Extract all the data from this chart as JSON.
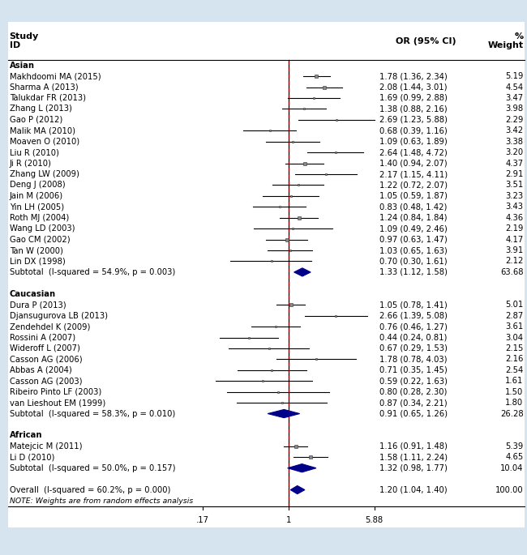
{
  "background_color": "#d6e4f0",
  "plot_bg_color": "#ffffff",
  "title_study": "Study\nID",
  "title_or": "OR (95% CI)",
  "title_weight": "%\nWeight",
  "xticks": [
    0.17,
    1.0,
    5.88
  ],
  "xticklabels": [
    ".17",
    "1",
    "5.88"
  ],
  "studies": [
    {
      "group": "Asian",
      "label": "Makhdoomi MA (2015)",
      "or": 1.78,
      "ci_low": 1.36,
      "ci_high": 2.34,
      "weight": 5.19,
      "or_text": "1.78 (1.36, 2.34)",
      "wt_text": "5.19"
    },
    {
      "group": "Asian",
      "label": "Sharma A (2013)",
      "or": 2.08,
      "ci_low": 1.44,
      "ci_high": 3.01,
      "weight": 4.54,
      "or_text": "2.08 (1.44, 3.01)",
      "wt_text": "4.54"
    },
    {
      "group": "Asian",
      "label": "Talukdar FR (2013)",
      "or": 1.69,
      "ci_low": 0.99,
      "ci_high": 2.88,
      "weight": 3.47,
      "or_text": "1.69 (0.99, 2.88)",
      "wt_text": "3.47"
    },
    {
      "group": "Asian",
      "label": "Zhang L (2013)",
      "or": 1.38,
      "ci_low": 0.88,
      "ci_high": 2.16,
      "weight": 3.98,
      "or_text": "1.38 (0.88, 2.16)",
      "wt_text": "3.98"
    },
    {
      "group": "Asian",
      "label": "Gao P (2012)",
      "or": 2.69,
      "ci_low": 1.23,
      "ci_high": 5.88,
      "weight": 2.29,
      "or_text": "2.69 (1.23, 5.88)",
      "wt_text": "2.29"
    },
    {
      "group": "Asian",
      "label": "Malik MA (2010)",
      "or": 0.68,
      "ci_low": 0.39,
      "ci_high": 1.16,
      "weight": 3.42,
      "or_text": "0.68 (0.39, 1.16)",
      "wt_text": "3.42"
    },
    {
      "group": "Asian",
      "label": "Moaven O (2010)",
      "or": 1.09,
      "ci_low": 0.63,
      "ci_high": 1.89,
      "weight": 3.38,
      "or_text": "1.09 (0.63, 1.89)",
      "wt_text": "3.38"
    },
    {
      "group": "Asian",
      "label": "Liu R (2010)",
      "or": 2.64,
      "ci_low": 1.48,
      "ci_high": 4.72,
      "weight": 3.2,
      "or_text": "2.64 (1.48, 4.72)",
      "wt_text": "3.20"
    },
    {
      "group": "Asian",
      "label": "Ji R (2010)",
      "or": 1.4,
      "ci_low": 0.94,
      "ci_high": 2.07,
      "weight": 4.37,
      "or_text": "1.40 (0.94, 2.07)",
      "wt_text": "4.37"
    },
    {
      "group": "Asian",
      "label": "Zhang LW (2009)",
      "or": 2.17,
      "ci_low": 1.15,
      "ci_high": 4.11,
      "weight": 2.91,
      "or_text": "2.17 (1.15, 4.11)",
      "wt_text": "2.91"
    },
    {
      "group": "Asian",
      "label": "Deng J (2008)",
      "or": 1.22,
      "ci_low": 0.72,
      "ci_high": 2.07,
      "weight": 3.51,
      "or_text": "1.22 (0.72, 2.07)",
      "wt_text": "3.51"
    },
    {
      "group": "Asian",
      "label": "Jain M (2006)",
      "or": 1.05,
      "ci_low": 0.59,
      "ci_high": 1.87,
      "weight": 3.23,
      "or_text": "1.05 (0.59, 1.87)",
      "wt_text": "3.23"
    },
    {
      "group": "Asian",
      "label": "Yin LH (2005)",
      "or": 0.83,
      "ci_low": 0.48,
      "ci_high": 1.42,
      "weight": 3.43,
      "or_text": "0.83 (0.48, 1.42)",
      "wt_text": "3.43"
    },
    {
      "group": "Asian",
      "label": "Roth MJ (2004)",
      "or": 1.24,
      "ci_low": 0.84,
      "ci_high": 1.84,
      "weight": 4.36,
      "or_text": "1.24 (0.84, 1.84)",
      "wt_text": "4.36"
    },
    {
      "group": "Asian",
      "label": "Wang LD (2003)",
      "or": 1.09,
      "ci_low": 0.49,
      "ci_high": 2.46,
      "weight": 2.19,
      "or_text": "1.09 (0.49, 2.46)",
      "wt_text": "2.19"
    },
    {
      "group": "Asian",
      "label": "Gao CM (2002)",
      "or": 0.97,
      "ci_low": 0.63,
      "ci_high": 1.47,
      "weight": 4.17,
      "or_text": "0.97 (0.63, 1.47)",
      "wt_text": "4.17"
    },
    {
      "group": "Asian",
      "label": "Tan W (2000)",
      "or": 1.03,
      "ci_low": 0.65,
      "ci_high": 1.63,
      "weight": 3.91,
      "or_text": "1.03 (0.65, 1.63)",
      "wt_text": "3.91"
    },
    {
      "group": "Asian",
      "label": "Lin DX (1998)",
      "or": 0.7,
      "ci_low": 0.3,
      "ci_high": 1.61,
      "weight": 2.12,
      "or_text": "0.70 (0.30, 1.61)",
      "wt_text": "2.12"
    },
    {
      "group": "Asian",
      "label": "Subtotal  (I-squared = 54.9%, p = 0.003)",
      "or": 1.33,
      "ci_low": 1.12,
      "ci_high": 1.58,
      "weight": 63.68,
      "or_text": "1.33 (1.12, 1.58)",
      "wt_text": "63.68",
      "is_subtotal": true
    },
    {
      "group": "Caucasian",
      "label": "Dura P (2013)",
      "or": 1.05,
      "ci_low": 0.78,
      "ci_high": 1.41,
      "weight": 5.01,
      "or_text": "1.05 (0.78, 1.41)",
      "wt_text": "5.01"
    },
    {
      "group": "Caucasian",
      "label": "Djansugurova LB (2013)",
      "or": 2.66,
      "ci_low": 1.39,
      "ci_high": 5.08,
      "weight": 2.87,
      "or_text": "2.66 (1.39, 5.08)",
      "wt_text": "2.87"
    },
    {
      "group": "Caucasian",
      "label": "Zendehdel K (2009)",
      "or": 0.76,
      "ci_low": 0.46,
      "ci_high": 1.27,
      "weight": 3.61,
      "or_text": "0.76 (0.46, 1.27)",
      "wt_text": "3.61"
    },
    {
      "group": "Caucasian",
      "label": "Rossini A (2007)",
      "or": 0.44,
      "ci_low": 0.24,
      "ci_high": 0.81,
      "weight": 3.04,
      "or_text": "0.44 (0.24, 0.81)",
      "wt_text": "3.04"
    },
    {
      "group": "Caucasian",
      "label": "Wideroff L (2007)",
      "or": 0.67,
      "ci_low": 0.29,
      "ci_high": 1.53,
      "weight": 2.15,
      "or_text": "0.67 (0.29, 1.53)",
      "wt_text": "2.15"
    },
    {
      "group": "Caucasian",
      "label": "Casson AG (2006)",
      "or": 1.78,
      "ci_low": 0.78,
      "ci_high": 4.03,
      "weight": 2.16,
      "or_text": "1.78 (0.78, 4.03)",
      "wt_text": "2.16"
    },
    {
      "group": "Caucasian",
      "label": "Abbas A (2004)",
      "or": 0.71,
      "ci_low": 0.35,
      "ci_high": 1.45,
      "weight": 2.54,
      "or_text": "0.71 (0.35, 1.45)",
      "wt_text": "2.54"
    },
    {
      "group": "Caucasian",
      "label": "Casson AG (2003)",
      "or": 0.59,
      "ci_low": 0.22,
      "ci_high": 1.63,
      "weight": 1.61,
      "or_text": "0.59 (0.22, 1.63)",
      "wt_text": "1.61"
    },
    {
      "group": "Caucasian",
      "label": "Ribeiro Pinto LF (2003)",
      "or": 0.8,
      "ci_low": 0.28,
      "ci_high": 2.3,
      "weight": 1.5,
      "or_text": "0.80 (0.28, 2.30)",
      "wt_text": "1.50"
    },
    {
      "group": "Caucasian",
      "label": "van Lieshout EM (1999)",
      "or": 0.87,
      "ci_low": 0.34,
      "ci_high": 2.21,
      "weight": 1.8,
      "or_text": "0.87 (0.34, 2.21)",
      "wt_text": "1.80"
    },
    {
      "group": "Caucasian",
      "label": "Subtotal  (I-squared = 58.3%, p = 0.010)",
      "or": 0.91,
      "ci_low": 0.65,
      "ci_high": 1.26,
      "weight": 26.28,
      "or_text": "0.91 (0.65, 1.26)",
      "wt_text": "26.28",
      "is_subtotal": true
    },
    {
      "group": "African",
      "label": "Matejcic M (2011)",
      "or": 1.16,
      "ci_low": 0.91,
      "ci_high": 1.48,
      "weight": 5.39,
      "or_text": "1.16 (0.91, 1.48)",
      "wt_text": "5.39"
    },
    {
      "group": "African",
      "label": "Li D (2010)",
      "or": 1.58,
      "ci_low": 1.11,
      "ci_high": 2.24,
      "weight": 4.65,
      "or_text": "1.58 (1.11, 2.24)",
      "wt_text": "4.65"
    },
    {
      "group": "African",
      "label": "Subtotal  (I-squared = 50.0%, p = 0.157)",
      "or": 1.32,
      "ci_low": 0.98,
      "ci_high": 1.77,
      "weight": 10.04,
      "or_text": "1.32 (0.98, 1.77)",
      "wt_text": "10.04",
      "is_subtotal": true
    },
    {
      "group": "Overall",
      "label": "Overall  (I-squared = 60.2%, p = 0.000)",
      "or": 1.2,
      "ci_low": 1.04,
      "ci_high": 1.4,
      "weight": 100.0,
      "or_text": "1.20 (1.04, 1.40)",
      "wt_text": "100.00",
      "is_overall": true
    }
  ],
  "note": "NOTE: Weights are from random effects analysis",
  "diamond_color": "#00008b",
  "ci_line_color": "#000000",
  "marker_color": "#888888",
  "marker_edge_color": "#333333",
  "dashed_line_color": "#8b0000",
  "text_color": "#000000",
  "fontsize": 7.2,
  "fontsize_header": 8.0
}
